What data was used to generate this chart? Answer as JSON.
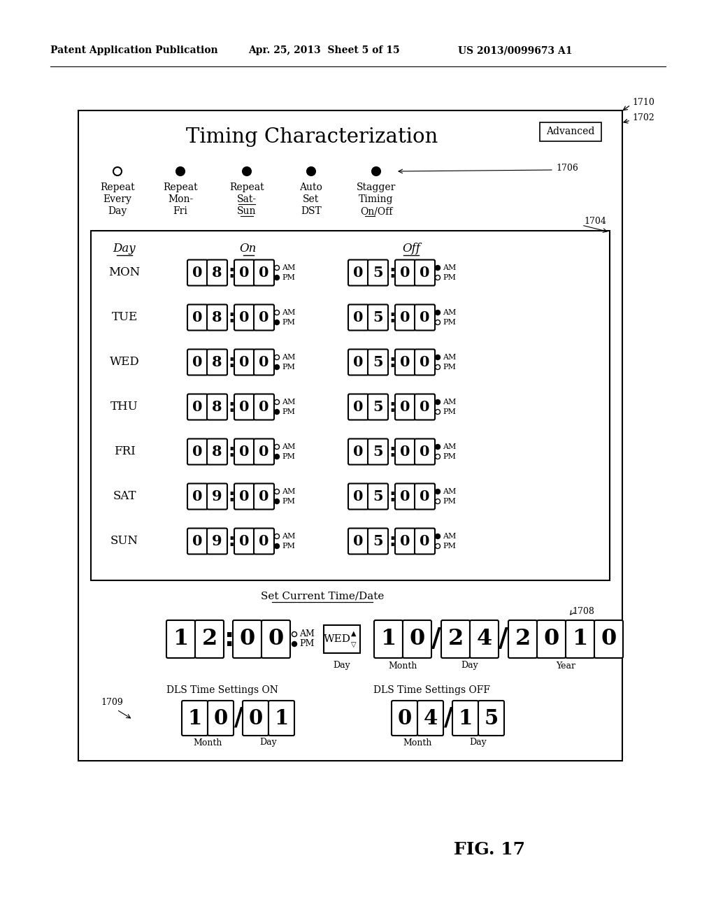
{
  "title": "Timing Characterization",
  "patent_header_left": "Patent Application Publication",
  "patent_header_mid": "Apr. 25, 2013  Sheet 5 of 15",
  "patent_header_right": "US 2013/0099673 A1",
  "fig_label": "FIG. 17",
  "days": [
    "MON",
    "TUE",
    "WED",
    "THU",
    "FRI",
    "SAT",
    "SUN"
  ],
  "on_times": [
    "08:00",
    "08:00",
    "08:00",
    "08:00",
    "08:00",
    "09:00",
    "09:00"
  ],
  "off_times": [
    "05:00",
    "05:00",
    "05:00",
    "05:00",
    "05:00",
    "05:00",
    "05:00"
  ],
  "on_am_filled": [
    false,
    false,
    false,
    false,
    false,
    false,
    false
  ],
  "on_pm_filled": [
    true,
    true,
    true,
    true,
    true,
    true,
    true
  ],
  "off_am_filled": [
    true,
    true,
    true,
    true,
    true,
    true,
    true
  ],
  "off_pm_filled": [
    false,
    false,
    false,
    false,
    false,
    false,
    false
  ],
  "radio_texts": [
    "Repeat\nEvery\nDay",
    "Repeat\nMon-\nFri",
    "Repeat\nSat-\nSun",
    "Auto\nSet\nDST",
    "Stagger\nTiming\nOn/Off"
  ],
  "radio_filled": [
    false,
    true,
    true,
    true,
    true
  ],
  "current_time": "12:00",
  "current_am": false,
  "current_pm": true,
  "current_day": "WED",
  "current_date_month": [
    "1",
    "0"
  ],
  "current_date_day": [
    "2",
    "4"
  ],
  "current_date_year": [
    "2",
    "0",
    "1",
    "0"
  ],
  "dls_on_month": [
    "1",
    "0"
  ],
  "dls_on_day": [
    "0",
    "1"
  ],
  "dls_off_month": [
    "0",
    "4"
  ],
  "dls_off_day": [
    "1",
    "5"
  ],
  "bg_color": "#ffffff"
}
